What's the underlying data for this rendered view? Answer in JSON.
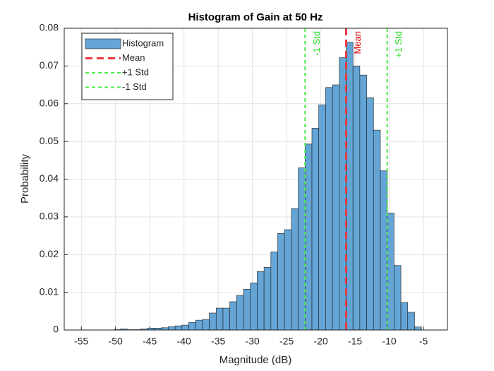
{
  "chart_data": {
    "type": "histogram",
    "title": "Histogram of Gain at 50 Hz",
    "xlabel": "Magnitude (dB)",
    "ylabel": "Probability",
    "name": "Histogram",
    "color": "#64a5d6",
    "bins": [
      -50.3,
      -49.3,
      -48.3,
      -47.3,
      -46.3,
      -45.3,
      -44.3,
      -43.3,
      -42.3,
      -41.3,
      -40.3,
      -39.3,
      -38.3,
      -37.3,
      -36.3,
      -35.3,
      -34.3,
      -33.3,
      -32.3,
      -31.3,
      -30.3,
      -29.3,
      -28.3,
      -27.3,
      -26.3,
      -25.3,
      -24.3,
      -23.3,
      -22.3,
      -21.3,
      -20.3,
      -19.3,
      -18.3,
      -17.3,
      -16.3,
      -15.3,
      -14.3,
      -13.3,
      -12.3,
      -11.3,
      -10.3,
      -9.3,
      -8.3,
      -7.3,
      -6.3,
      -5.3
    ],
    "values": [
      0.0001,
      0.0003,
      0.0001,
      0.0001,
      0.0003,
      0.0005,
      0.0005,
      0.0006,
      0.0009,
      0.0011,
      0.0013,
      0.002,
      0.0026,
      0.0028,
      0.0045,
      0.0058,
      0.0058,
      0.0075,
      0.0092,
      0.0108,
      0.0125,
      0.0155,
      0.0166,
      0.0207,
      0.0256,
      0.0266,
      0.0322,
      0.043,
      0.0493,
      0.0535,
      0.0597,
      0.0643,
      0.065,
      0.0722,
      0.0763,
      0.07,
      0.0676,
      0.0616,
      0.053,
      0.0422,
      0.031,
      0.0171,
      0.0073,
      0.0047,
      0.0008
    ],
    "reference_lines": [
      {
        "name": "Mean",
        "x": -16.3,
        "color": "#e8383d"
      },
      {
        "name": "+1 Std",
        "x": -10.3,
        "color": "#4ce84c"
      },
      {
        "name": "-1 Std",
        "x": -22.3,
        "color": "#4ce84c"
      }
    ],
    "xlim": [
      -57.5,
      -1.5
    ],
    "ylim": [
      0,
      0.08
    ],
    "xticks": [
      -55,
      -50,
      -45,
      -40,
      -35,
      -30,
      -25,
      -20,
      -15,
      -10,
      -5
    ],
    "yticks": [
      0,
      0.01,
      0.02,
      0.03,
      0.04,
      0.05,
      0.06,
      0.07,
      0.08
    ],
    "grid": true,
    "legend": "northwest"
  }
}
